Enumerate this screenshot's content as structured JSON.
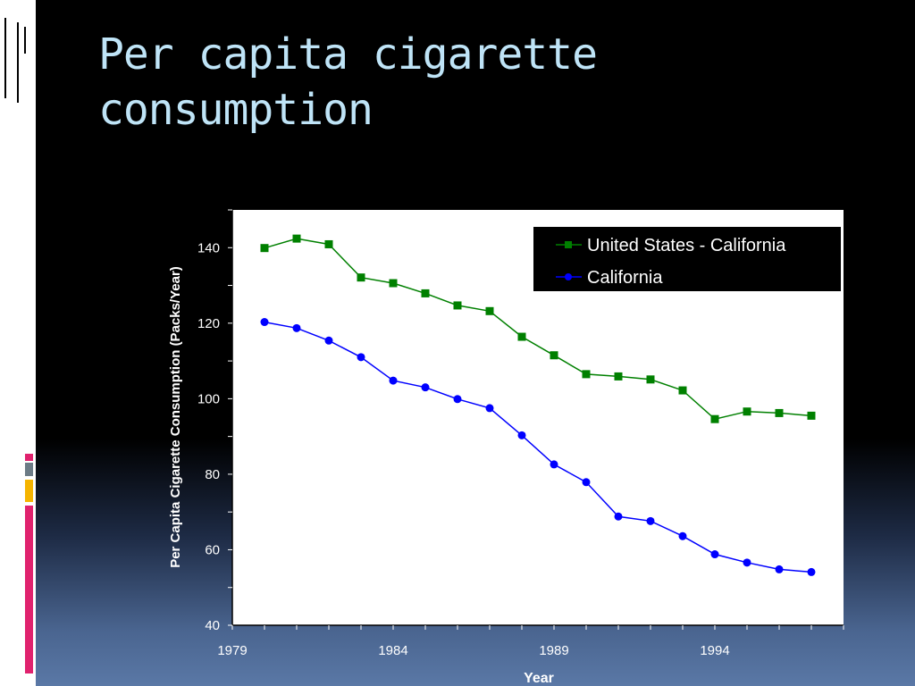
{
  "slide": {
    "title": "Per capita cigarette consumption",
    "title_color": "#bfe4f7",
    "icon": "window-panes-icon"
  },
  "accent_bars": {
    "colors": [
      "#e0226e",
      "#6c7b86",
      "#f5b400",
      "#e0226e"
    ]
  },
  "chart_data": {
    "type": "line",
    "title": "",
    "xlabel": "Year",
    "ylabel": "Per Capita Cigarette Consumption (Packs/Year)",
    "xlim": [
      1979,
      1998
    ],
    "ylim": [
      40,
      150
    ],
    "x_ticks": [
      1979,
      1984,
      1989,
      1994
    ],
    "y_ticks": [
      40,
      60,
      80,
      100,
      120,
      140
    ],
    "grid": false,
    "legend_position": "top-right",
    "x": [
      1980,
      1981,
      1982,
      1983,
      1984,
      1985,
      1986,
      1987,
      1988,
      1989,
      1990,
      1991,
      1992,
      1993,
      1994,
      1995,
      1996,
      1997
    ],
    "series": [
      {
        "name": "United States - California",
        "color": "#008000",
        "marker": "square",
        "values": [
          139.9,
          142.4,
          140.9,
          132.1,
          130.6,
          127.9,
          124.7,
          123.2,
          116.4,
          111.5,
          106.5,
          105.9,
          105.1,
          102.2,
          94.6,
          96.6,
          96.2,
          95.5
        ]
      },
      {
        "name": "California",
        "color": "#0000ff",
        "marker": "circle",
        "values": [
          120.3,
          118.7,
          115.4,
          111.0,
          104.8,
          103.0,
          99.9,
          97.5,
          90.3,
          82.6,
          77.9,
          68.8,
          67.6,
          63.6,
          58.8,
          56.6,
          54.8,
          54.1
        ]
      }
    ]
  }
}
